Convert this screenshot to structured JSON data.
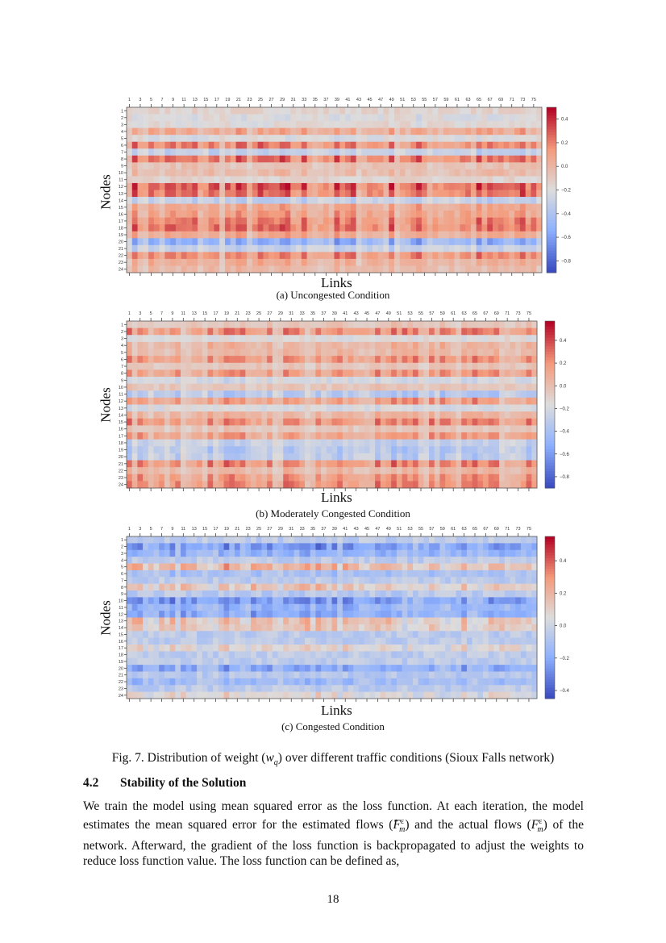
{
  "figure": {
    "caption_prefix": "Fig. 7. Distribution of weight (",
    "caption_var": "w",
    "caption_var_sub": "q",
    "caption_suffix": ") over different traffic conditions (Sioux Falls network)"
  },
  "section": {
    "number": "4.2",
    "title": "Stability of the Solution"
  },
  "paragraph": {
    "p1": "We train the model using mean squared error as the loss function. At each iteration, the model estimates the mean squared error for the estimated flows (",
    "var": "F",
    "sub": "m",
    "sup": "ε",
    "p2": ") and the actual flows (",
    "p3": ") of the network. Afterward, the gradient of the loss function is backpropagated to adjust the weights to reduce loss function value. The loss function can be defined as,"
  },
  "page_number": "18",
  "chart_data": [
    {
      "type": "heatmap",
      "subcaption": "(a) Uncongested Condition",
      "xlabel": "Links",
      "ylabel": "Nodes",
      "x_tick_labels": [
        "1",
        "3",
        "5",
        "7",
        "9",
        "11",
        "13",
        "15",
        "17",
        "19",
        "21",
        "23",
        "25",
        "27",
        "29",
        "31",
        "33",
        "35",
        "37",
        "39",
        "41",
        "43",
        "45",
        "47",
        "49",
        "51",
        "53",
        "55",
        "57",
        "59",
        "61",
        "63",
        "65",
        "67",
        "69",
        "71",
        "73",
        "75"
      ],
      "n_cols": 76,
      "n_rows": 24,
      "colormap": "coolwarm",
      "vrange": [
        -0.9,
        0.5
      ],
      "colorbar_ticks": [
        0.4,
        0.2,
        0.0,
        -0.2,
        -0.4,
        -0.6,
        -0.8
      ],
      "row_mean_values": [
        -0.15,
        -0.2,
        -0.18,
        0.02,
        -0.2,
        0.12,
        -0.28,
        0.15,
        -0.08,
        -0.05,
        -0.15,
        0.2,
        0.15,
        -0.28,
        0.02,
        0.05,
        0.12,
        0.15,
        0.02,
        -0.45,
        -0.28,
        0.1,
        0.0,
        -0.05
      ]
    },
    {
      "type": "heatmap",
      "subcaption": "(b) Moderately Congested Condition",
      "xlabel": "Links",
      "ylabel": "Nodes",
      "x_tick_labels": [
        "1",
        "3",
        "5",
        "7",
        "9",
        "11",
        "13",
        "15",
        "17",
        "19",
        "21",
        "23",
        "25",
        "27",
        "29",
        "31",
        "33",
        "35",
        "37",
        "39",
        "41",
        "43",
        "45",
        "47",
        "49",
        "51",
        "53",
        "55",
        "57",
        "59",
        "61",
        "63",
        "65",
        "67",
        "69",
        "71",
        "73",
        "75"
      ],
      "n_cols": 76,
      "n_rows": 24,
      "colormap": "coolwarm",
      "vrange": [
        -0.9,
        0.57
      ],
      "colorbar_ticks": [
        0.4,
        0.2,
        0.0,
        -0.2,
        -0.4,
        -0.6,
        -0.8
      ],
      "row_mean_values": [
        -0.05,
        0.15,
        -0.15,
        0.02,
        0.0,
        0.12,
        -0.05,
        0.12,
        -0.2,
        -0.05,
        -0.3,
        0.1,
        -0.18,
        0.02,
        0.15,
        -0.05,
        0.1,
        -0.25,
        -0.3,
        -0.28,
        0.15,
        0.0,
        0.12,
        0.15
      ]
    },
    {
      "type": "heatmap",
      "subcaption": "(c) Congested Condition",
      "xlabel": "Links",
      "ylabel": "Nodes",
      "x_tick_labels": [
        "1",
        "3",
        "5",
        "7",
        "9",
        "11",
        "13",
        "15",
        "17",
        "19",
        "21",
        "23",
        "25",
        "27",
        "29",
        "31",
        "33",
        "35",
        "37",
        "39",
        "41",
        "43",
        "45",
        "47",
        "49",
        "51",
        "53",
        "55",
        "57",
        "59",
        "61",
        "63",
        "65",
        "67",
        "69",
        "71",
        "73",
        "75"
      ],
      "n_cols": 76,
      "n_rows": 24,
      "colormap": "coolwarm",
      "vrange": [
        -0.45,
        0.55
      ],
      "colorbar_ticks": [
        0.4,
        0.2,
        0.0,
        -0.2,
        -0.4
      ],
      "row_mean_values": [
        -0.05,
        -0.22,
        -0.15,
        -0.05,
        0.15,
        -0.1,
        -0.05,
        0.1,
        -0.06,
        -0.22,
        -0.15,
        -0.18,
        0.12,
        0.1,
        -0.05,
        -0.05,
        0.06,
        -0.05,
        -0.05,
        -0.18,
        -0.07,
        -0.12,
        -0.05,
        0.05
      ]
    }
  ]
}
